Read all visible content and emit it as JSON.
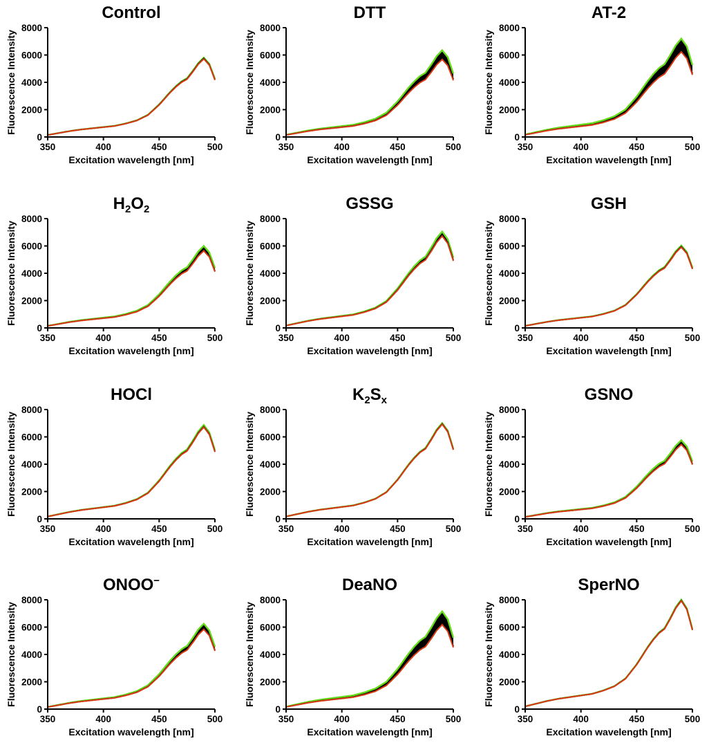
{
  "colors": {
    "green": "#66dd1a",
    "black": "#000000",
    "red": "#dd3318",
    "orange": "#c9701c"
  },
  "chart_data": {
    "x_label": "Excitation wavelength [nm]",
    "y_label": "Fluorescence Intensity",
    "x_ticks": [
      350,
      400,
      450,
      500
    ],
    "y_ticks": [
      0,
      2000,
      4000,
      6000,
      8000
    ],
    "xlim": [
      350,
      500
    ],
    "ylim": [
      0,
      8000
    ],
    "x": [
      350,
      360,
      370,
      380,
      390,
      400,
      410,
      420,
      430,
      440,
      450,
      460,
      465,
      470,
      475,
      480,
      485,
      490,
      495,
      500
    ],
    "base_curve_peak_normalized": [
      0.025,
      0.05,
      0.075,
      0.095,
      0.11,
      0.125,
      0.14,
      0.17,
      0.21,
      0.28,
      0.41,
      0.57,
      0.64,
      0.7,
      0.74,
      0.83,
      0.93,
      1.0,
      0.92,
      0.73
    ],
    "panels": [
      {
        "type": "line",
        "title": "Control",
        "title_parts": [
          {
            "t": "Control"
          }
        ],
        "peak": 5750,
        "band": 60,
        "band_low": 40,
        "trace_offset": 0
      },
      {
        "type": "line",
        "title": "DTT",
        "title_parts": [
          {
            "t": "DTT"
          }
        ],
        "peak": 5800,
        "band": 550,
        "band_low": 120,
        "trace_offset": 0
      },
      {
        "type": "line",
        "title": "AT-2",
        "title_parts": [
          {
            "t": "AT-2"
          }
        ],
        "peak": 6350,
        "band": 850,
        "band_low": 120,
        "trace_offset": 0
      },
      {
        "type": "line",
        "title": "H2O2",
        "title_parts": [
          {
            "t": "H"
          },
          {
            "t": "2",
            "sub": true
          },
          {
            "t": "O"
          },
          {
            "t": "2",
            "sub": true
          }
        ],
        "peak": 5700,
        "band": 300,
        "band_low": 60,
        "trace_offset": 1
      },
      {
        "type": "line",
        "title": "GSSG",
        "title_parts": [
          {
            "t": "GSSG"
          }
        ],
        "peak": 6800,
        "band": 250,
        "band_low": 80,
        "trace_offset": 0
      },
      {
        "type": "line",
        "title": "GSH",
        "title_parts": [
          {
            "t": "GSH"
          }
        ],
        "peak": 5950,
        "band": 80,
        "band_low": 40,
        "trace_offset": 0
      },
      {
        "type": "line",
        "title": "HOCl",
        "title_parts": [
          {
            "t": "HOCl"
          }
        ],
        "peak": 6750,
        "band": 120,
        "band_low": 40,
        "trace_offset": 0
      },
      {
        "type": "line",
        "title": "K2Sx",
        "title_parts": [
          {
            "t": "K"
          },
          {
            "t": "2",
            "sub": true
          },
          {
            "t": "S"
          },
          {
            "t": "x",
            "sub": true
          }
        ],
        "peak": 6950,
        "band": 60,
        "band_low": 30,
        "trace_offset": 0
      },
      {
        "type": "line",
        "title": "GSNO",
        "title_parts": [
          {
            "t": "GSNO"
          }
        ],
        "peak": 5500,
        "band": 250,
        "band_low": 60,
        "trace_offset": 0
      },
      {
        "type": "line",
        "title": "ONOO−",
        "title_parts": [
          {
            "t": "ONOO"
          },
          {
            "t": "−",
            "sup": true
          }
        ],
        "peak": 5900,
        "band": 350,
        "band_low": 60,
        "trace_offset": 0
      },
      {
        "type": "line",
        "title": "DeaNO",
        "title_parts": [
          {
            "t": "DeaNO"
          }
        ],
        "peak": 6300,
        "band": 850,
        "band_low": 120,
        "trace_offset": 0
      },
      {
        "type": "line",
        "title": "SperNO",
        "title_parts": [
          {
            "t": "SperNO"
          }
        ],
        "peak": 7950,
        "band": 60,
        "band_low": 30,
        "trace_offset": 0
      }
    ]
  }
}
